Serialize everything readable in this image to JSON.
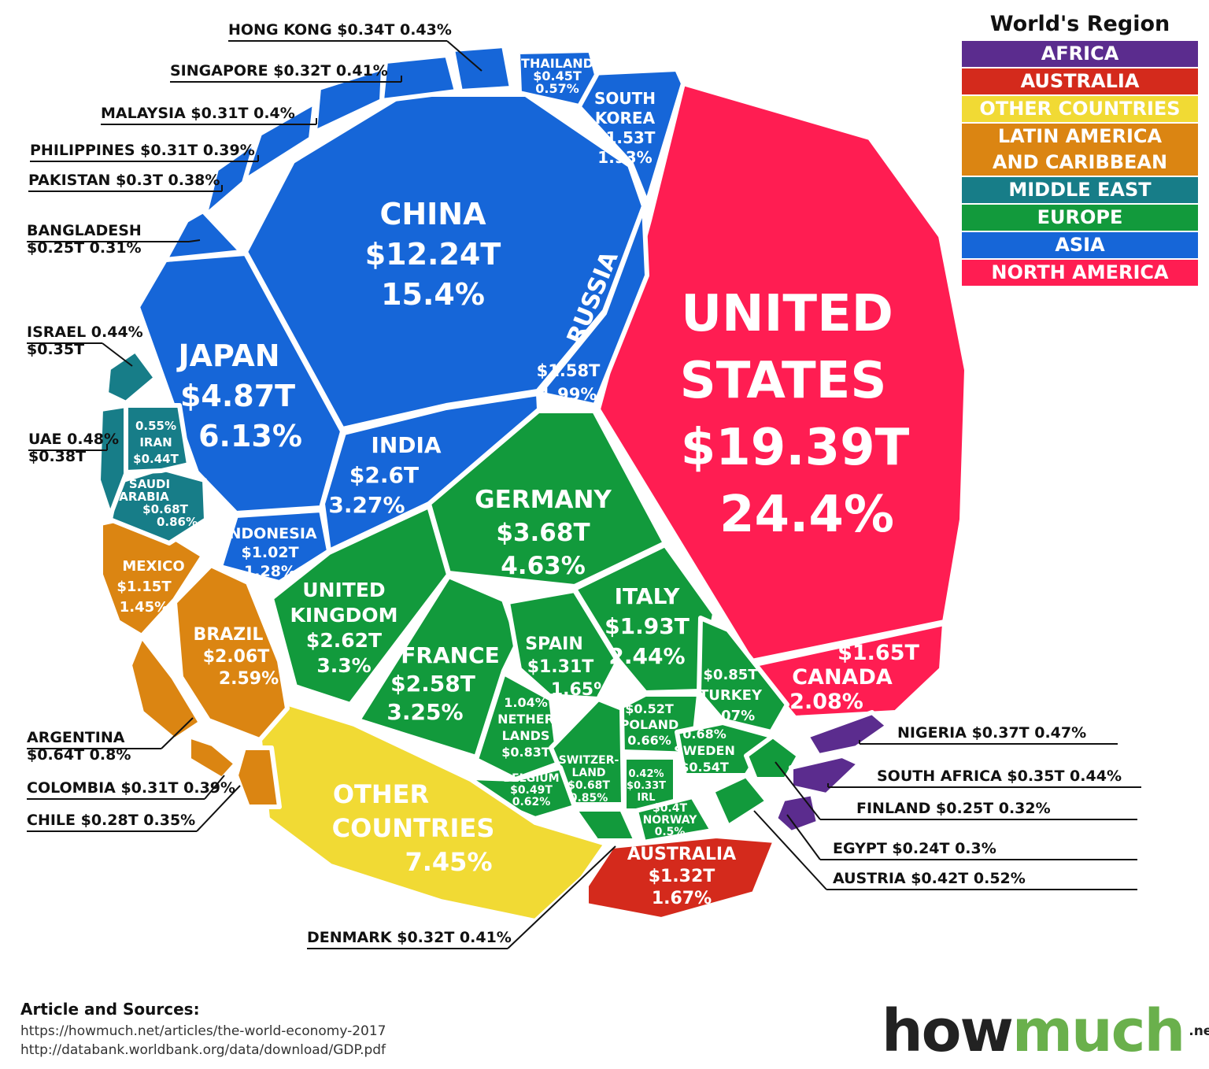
{
  "legend": {
    "title": "World's Region",
    "items": [
      {
        "label": "AFRICA",
        "color": "#5b2c8e"
      },
      {
        "label": "AUSTRALIA",
        "color": "#d42a1c"
      },
      {
        "label": "OTHER COUNTRIES",
        "color": "#f1da34"
      },
      {
        "label": "LATIN AMERICA\nAND CARIBBEAN",
        "color": "#db8512"
      },
      {
        "label": "MIDDLE EAST",
        "color": "#177d88"
      },
      {
        "label": "EUROPE",
        "color": "#129a3c"
      },
      {
        "label": "ASIA",
        "color": "#1666d8"
      },
      {
        "label": "NORTH AMERICA",
        "color": "#ff1d52"
      }
    ]
  },
  "chart_data": {
    "type": "voronoi treemap",
    "unit": "GDP, trillion USD / share of world GDP",
    "cells": [
      {
        "name": "UNITED STATES",
        "region": "NORTH AMERICA",
        "gdp_trillion": 19.39,
        "share_pct": 24.4,
        "lines": [
          "UNITED",
          "STATES",
          "$19.39T",
          "24.4%"
        ]
      },
      {
        "name": "CANADA",
        "region": "NORTH AMERICA",
        "gdp_trillion": 1.65,
        "share_pct": 2.08,
        "lines": [
          "$1.65T",
          "CANADA",
          "2.08%"
        ]
      },
      {
        "name": "CHINA",
        "region": "ASIA",
        "gdp_trillion": 12.24,
        "share_pct": 15.4,
        "lines": [
          "CHINA",
          "$12.24T",
          "15.4%"
        ]
      },
      {
        "name": "JAPAN",
        "region": "ASIA",
        "gdp_trillion": 4.87,
        "share_pct": 6.13,
        "lines": [
          "JAPAN",
          "$4.87T",
          "6.13%"
        ]
      },
      {
        "name": "INDIA",
        "region": "ASIA",
        "gdp_trillion": 2.6,
        "share_pct": 3.27,
        "lines": [
          "INDIA",
          "$2.6T",
          "3.27%"
        ]
      },
      {
        "name": "RUSSIA",
        "region": "ASIA",
        "gdp_trillion": 1.58,
        "share_pct": 1.99,
        "lines": [
          "RUSSIA"
        ],
        "extra_lines": [
          "$1.58T",
          "1.99%"
        ]
      },
      {
        "name": "SOUTH KOREA",
        "region": "ASIA",
        "gdp_trillion": 1.53,
        "share_pct": 1.93,
        "lines": [
          "SOUTH",
          "KOREA",
          "$1.53T",
          "1.93%"
        ]
      },
      {
        "name": "INDONESIA",
        "region": "ASIA",
        "gdp_trillion": 1.02,
        "share_pct": 1.28,
        "lines": [
          "INDONESIA",
          "$1.02T",
          "1.28%"
        ]
      },
      {
        "name": "THAILAND",
        "region": "ASIA",
        "gdp_trillion": 0.45,
        "share_pct": 0.57,
        "lines": [
          "THAILAND",
          "$0.45T",
          "0.57%"
        ]
      },
      {
        "name": "HONG KONG",
        "region": "ASIA",
        "gdp_trillion": 0.34,
        "share_pct": 0.43
      },
      {
        "name": "SINGAPORE",
        "region": "ASIA",
        "gdp_trillion": 0.32,
        "share_pct": 0.41
      },
      {
        "name": "MALAYSIA",
        "region": "ASIA",
        "gdp_trillion": 0.31,
        "share_pct": 0.4
      },
      {
        "name": "PHILIPPINES",
        "region": "ASIA",
        "gdp_trillion": 0.31,
        "share_pct": 0.39
      },
      {
        "name": "PAKISTAN",
        "region": "ASIA",
        "gdp_trillion": 0.3,
        "share_pct": 0.38
      },
      {
        "name": "BANGLADESH",
        "region": "ASIA",
        "gdp_trillion": 0.25,
        "share_pct": 0.31
      },
      {
        "name": "GERMANY",
        "region": "EUROPE",
        "gdp_trillion": 3.68,
        "share_pct": 4.63,
        "lines": [
          "GERMANY",
          "$3.68T",
          "4.63%"
        ]
      },
      {
        "name": "UNITED KINGDOM",
        "region": "EUROPE",
        "gdp_trillion": 2.62,
        "share_pct": 3.3,
        "lines": [
          "UNITED",
          "KINGDOM",
          "$2.62T",
          "3.3%"
        ]
      },
      {
        "name": "FRANCE",
        "region": "EUROPE",
        "gdp_trillion": 2.58,
        "share_pct": 3.25,
        "lines": [
          "FRANCE",
          "$2.58T",
          "3.25%"
        ]
      },
      {
        "name": "ITALY",
        "region": "EUROPE",
        "gdp_trillion": 1.93,
        "share_pct": 2.44,
        "lines": [
          "ITALY",
          "$1.93T",
          "2.44%"
        ]
      },
      {
        "name": "SPAIN",
        "region": "EUROPE",
        "gdp_trillion": 1.31,
        "share_pct": 1.65,
        "lines": [
          "SPAIN",
          "$1.31T",
          "1.65%"
        ]
      },
      {
        "name": "TURKEY",
        "region": "EUROPE",
        "gdp_trillion": 0.85,
        "share_pct": 1.07,
        "lines": [
          "$0.85T",
          "TURKEY",
          "1.07%"
        ]
      },
      {
        "name": "NETHERLANDS",
        "region": "EUROPE",
        "gdp_trillion": 0.83,
        "share_pct": 1.04,
        "lines": [
          "1.04%",
          "NETHER",
          "LANDS",
          "$0.83T"
        ]
      },
      {
        "name": "POLAND",
        "region": "EUROPE",
        "gdp_trillion": 0.52,
        "share_pct": 0.66,
        "lines": [
          "$0.52T",
          "POLAND",
          "0.66%"
        ]
      },
      {
        "name": "SWEDEN",
        "region": "EUROPE",
        "gdp_trillion": 0.54,
        "share_pct": 0.68,
        "lines": [
          "0.68%",
          "SWEDEN",
          "$0.54T"
        ]
      },
      {
        "name": "SWITZERLAND",
        "region": "EUROPE",
        "gdp_trillion": 0.68,
        "share_pct": 0.85,
        "lines": [
          "SWITZER-",
          "LAND",
          "$0.68T",
          "0.85%"
        ]
      },
      {
        "name": "BELGIUM",
        "region": "EUROPE",
        "gdp_trillion": 0.49,
        "share_pct": 0.62,
        "lines": [
          "BELGIUM",
          "$0.49T",
          "0.62%"
        ]
      },
      {
        "name": "IRL",
        "region": "EUROPE",
        "gdp_trillion": 0.33,
        "share_pct": 0.42,
        "lines": [
          "0.42%",
          "$0.33T",
          "IRL"
        ]
      },
      {
        "name": "NORWAY",
        "region": "EUROPE",
        "gdp_trillion": 0.4,
        "share_pct": 0.5,
        "lines": [
          "$0.4T",
          "NORWAY",
          "0.5%"
        ]
      },
      {
        "name": "AUSTRIA",
        "region": "EUROPE",
        "gdp_trillion": 0.42,
        "share_pct": 0.52
      },
      {
        "name": "FINLAND",
        "region": "EUROPE",
        "gdp_trillion": 0.25,
        "share_pct": 0.32
      },
      {
        "name": "DENMARK",
        "region": "EUROPE",
        "gdp_trillion": 0.32,
        "share_pct": 0.41
      },
      {
        "name": "OTHER COUNTRIES",
        "region": "OTHER COUNTRIES",
        "share_pct": 7.45,
        "lines": [
          "OTHER",
          "COUNTRIES",
          "7.45%"
        ]
      },
      {
        "name": "BRAZIL",
        "region": "LATIN AMERICA AND CARIBBEAN",
        "gdp_trillion": 2.06,
        "share_pct": 2.59,
        "lines": [
          "BRAZIL",
          "$2.06T",
          "2.59%"
        ]
      },
      {
        "name": "MEXICO",
        "region": "LATIN AMERICA AND CARIBBEAN",
        "gdp_trillion": 1.15,
        "share_pct": 1.45,
        "lines": [
          "MEXICO",
          "$1.15T",
          "1.45%"
        ]
      },
      {
        "name": "ARGENTINA",
        "region": "LATIN AMERICA AND CARIBBEAN",
        "gdp_trillion": 0.64,
        "share_pct": 0.8
      },
      {
        "name": "COLOMBIA",
        "region": "LATIN AMERICA AND CARIBBEAN",
        "gdp_trillion": 0.31,
        "share_pct": 0.39
      },
      {
        "name": "CHILE",
        "region": "LATIN AMERICA AND CARIBBEAN",
        "gdp_trillion": 0.28,
        "share_pct": 0.35
      },
      {
        "name": "SAUDI ARABIA",
        "region": "MIDDLE EAST",
        "gdp_trillion": 0.68,
        "share_pct": 0.86,
        "lines": [
          "SAUDI",
          "ARABIA",
          "$0.68T",
          "0.86%"
        ]
      },
      {
        "name": "IRAN",
        "region": "MIDDLE EAST",
        "gdp_trillion": 0.44,
        "share_pct": 0.55,
        "lines": [
          "0.55%",
          "IRAN",
          "$0.44T"
        ]
      },
      {
        "name": "UAE",
        "region": "MIDDLE EAST",
        "gdp_trillion": 0.38,
        "share_pct": 0.48
      },
      {
        "name": "ISRAEL",
        "region": "MIDDLE EAST",
        "gdp_trillion": 0.35,
        "share_pct": 0.44
      },
      {
        "name": "AUSTRALIA",
        "region": "AUSTRALIA",
        "gdp_trillion": 1.32,
        "share_pct": 1.67,
        "lines": [
          "AUSTRALIA",
          "$1.32T",
          "1.67%"
        ]
      },
      {
        "name": "NIGERIA",
        "region": "AFRICA",
        "gdp_trillion": 0.37,
        "share_pct": 0.47
      },
      {
        "name": "SOUTH AFRICA",
        "region": "AFRICA",
        "gdp_trillion": 0.35,
        "share_pct": 0.44
      },
      {
        "name": "EGYPT",
        "region": "AFRICA",
        "gdp_trillion": 0.24,
        "share_pct": 0.3
      }
    ],
    "callouts": [
      {
        "name": "HONG KONG",
        "lines": [
          "HONG KONG  $0.34T  0.43%"
        ]
      },
      {
        "name": "SINGAPORE",
        "lines": [
          "SINGAPORE $0.32T  0.41%"
        ]
      },
      {
        "name": "MALAYSIA",
        "lines": [
          "MALAYSIA  $0.31T   0.4%"
        ]
      },
      {
        "name": "PHILIPPINES",
        "lines": [
          "PHILIPPINES $0.31T  0.39%"
        ]
      },
      {
        "name": "PAKISTAN",
        "lines": [
          "PAKISTAN  $0.3T  0.38%"
        ]
      },
      {
        "name": "BANGLADESH",
        "lines": [
          "BANGLADESH",
          "$0.25T  0.31%"
        ]
      },
      {
        "name": "ISRAEL",
        "lines": [
          "ISRAEL 0.44%",
          "$0.35T"
        ]
      },
      {
        "name": "UAE",
        "lines": [
          "UAE  0.48%",
          "$0.38T"
        ]
      },
      {
        "name": "ARGENTINA",
        "lines": [
          "ARGENTINA",
          "$0.64T  0.8%"
        ]
      },
      {
        "name": "COLOMBIA",
        "lines": [
          "COLOMBIA $0.31T  0.39%"
        ]
      },
      {
        "name": "CHILE",
        "lines": [
          "CHILE  $0.28T  0.35%"
        ]
      },
      {
        "name": "DENMARK",
        "lines": [
          "DENMARK $0.32T 0.41%"
        ]
      },
      {
        "name": "NIGERIA",
        "lines": [
          "NIGERIA $0.37T 0.47%"
        ]
      },
      {
        "name": "SOUTH AFRICA",
        "lines": [
          "SOUTH AFRICA $0.35T 0.44%"
        ]
      },
      {
        "name": "FINLAND",
        "lines": [
          "FINLAND $0.25T  0.32%"
        ]
      },
      {
        "name": "EGYPT",
        "lines": [
          "EGYPT $0.24T  0.3%"
        ]
      },
      {
        "name": "AUSTRIA",
        "lines": [
          "AUSTRIA $0.42T  0.52%"
        ]
      }
    ]
  },
  "sources": {
    "title": "Article and Sources:",
    "lines": [
      "https://howmuch.net/articles/the-world-economy-2017",
      "http://databank.worldbank.org/data/download/GDP.pdf"
    ]
  },
  "brand": {
    "how": "how",
    "much": "much",
    "net": ".net"
  }
}
